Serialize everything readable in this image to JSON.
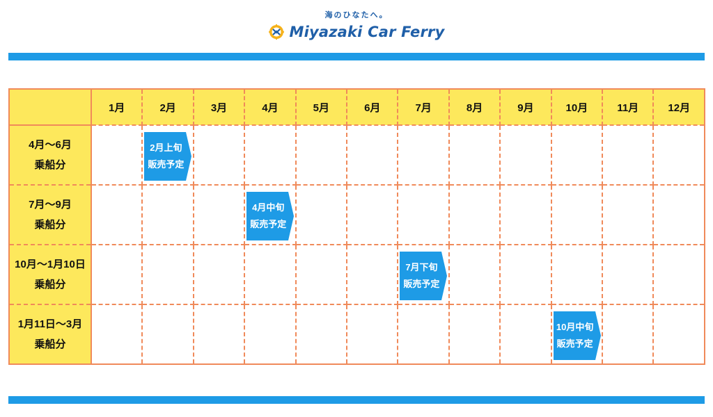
{
  "header": {
    "tagline": "海のひなたへ。",
    "brand_name": "Miyazaki Car Ferry"
  },
  "colors": {
    "accent_blue": "#1e9be6",
    "header_yellow": "#fde85c",
    "grid_orange": "#f08a5a",
    "brand_navy": "#1f5fa8"
  },
  "table": {
    "months": [
      "1月",
      "2月",
      "3月",
      "4月",
      "5月",
      "6月",
      "7月",
      "8月",
      "9月",
      "10月",
      "11月",
      "12月"
    ],
    "rows": [
      {
        "period": "4月〜6月",
        "suffix": "乗船分",
        "badge_col": 1,
        "badge_line1": "2月上旬",
        "badge_line2": "販売予定"
      },
      {
        "period": "7月〜9月",
        "suffix": "乗船分",
        "badge_col": 3,
        "badge_line1": "4月中旬",
        "badge_line2": "販売予定"
      },
      {
        "period": "10月〜1月10日",
        "suffix": "乗船分",
        "badge_col": 6,
        "badge_line1": "7月下旬",
        "badge_line2": "販売予定"
      },
      {
        "period": "1月11日〜3月",
        "suffix": "乗船分",
        "badge_col": 9,
        "badge_line1": "10月中旬",
        "badge_line2": "販売予定"
      }
    ]
  }
}
